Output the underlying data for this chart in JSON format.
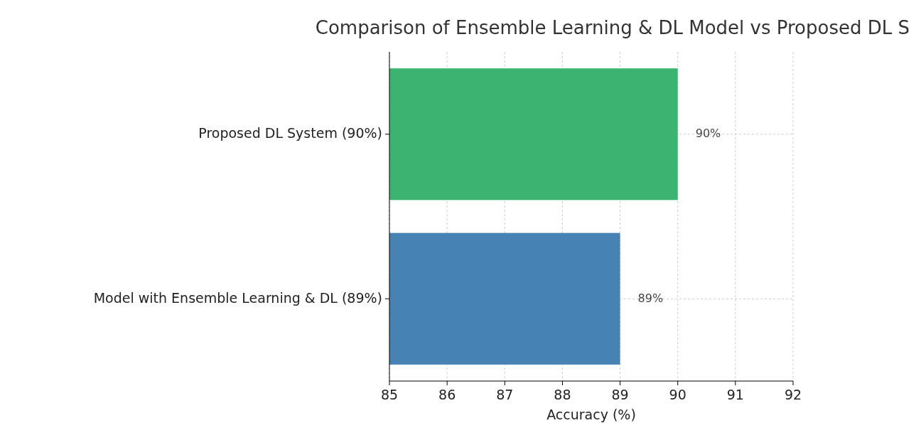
{
  "chart_data": {
    "type": "bar",
    "orientation": "horizontal",
    "title": "Comparison of Ensemble Learning & DL Model vs Proposed DL S",
    "xlabel": "Accuracy (%)",
    "categories": [
      "Proposed DL System (90%)",
      "Model with Ensemble Learning & DL (89%)"
    ],
    "values": [
      90,
      89
    ],
    "colors": [
      "#3cb371",
      "#4682b4"
    ],
    "value_labels": [
      "90%",
      "89%"
    ],
    "xlim": [
      85,
      92
    ],
    "xticks": [
      85,
      86,
      87,
      88,
      89,
      90,
      91,
      92
    ],
    "grid": true
  }
}
